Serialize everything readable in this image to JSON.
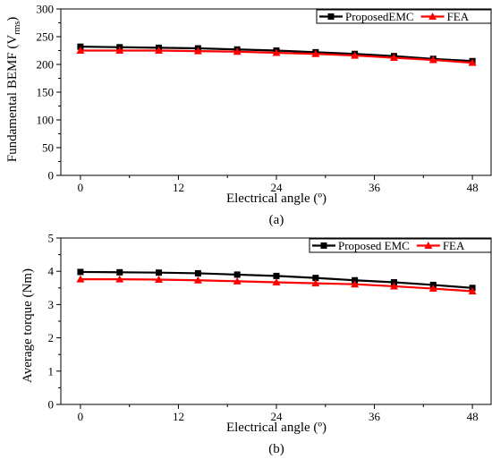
{
  "chart_data": [
    {
      "type": "line",
      "caption": "(a)",
      "ylabel_main": "Fundamental BEMF (V",
      "ylabel_sub": "rms",
      "ylabel_close": ")",
      "xlabel": "Electrical angle (º)",
      "xlim": [
        -2.4,
        50.4
      ],
      "ylim": [
        0,
        300
      ],
      "xticks": [
        0,
        12,
        24,
        36,
        48
      ],
      "yticks": [
        0,
        50,
        100,
        150,
        200,
        250,
        300
      ],
      "x": [
        0,
        4.8,
        9.6,
        14.4,
        19.2,
        24,
        28.8,
        33.6,
        38.4,
        43.2,
        48
      ],
      "series": [
        {
          "name": "ProposedEMC",
          "color": "#000000",
          "marker": "square",
          "values": [
            232,
            231,
            230,
            229,
            227,
            225,
            222,
            219,
            215,
            210,
            206
          ]
        },
        {
          "name": "FEA",
          "color": "#ff0000",
          "marker": "triangle",
          "values": [
            225,
            225,
            225,
            224,
            223,
            221,
            219,
            216,
            212,
            208,
            203
          ]
        }
      ],
      "legend_position": "top-right"
    },
    {
      "type": "line",
      "caption": "(b)",
      "ylabel": "Average torque (Nm)",
      "xlabel": "Electrical angle (º)",
      "xlim": [
        -2.4,
        50.4
      ],
      "ylim": [
        0,
        5
      ],
      "xticks": [
        0,
        12,
        24,
        36,
        48
      ],
      "yticks": [
        0,
        1,
        2,
        3,
        4,
        5
      ],
      "x": [
        0,
        4.8,
        9.6,
        14.4,
        19.2,
        24,
        28.8,
        33.6,
        38.4,
        43.2,
        48
      ],
      "series": [
        {
          "name": "Proposed EMC",
          "color": "#000000",
          "marker": "square",
          "values": [
            3.98,
            3.97,
            3.96,
            3.94,
            3.9,
            3.86,
            3.8,
            3.73,
            3.67,
            3.59,
            3.5
          ]
        },
        {
          "name": "FEA",
          "color": "#ff0000",
          "marker": "triangle",
          "values": [
            3.76,
            3.76,
            3.75,
            3.73,
            3.7,
            3.67,
            3.64,
            3.61,
            3.55,
            3.48,
            3.4
          ]
        }
      ],
      "legend_position": "top-right"
    }
  ]
}
